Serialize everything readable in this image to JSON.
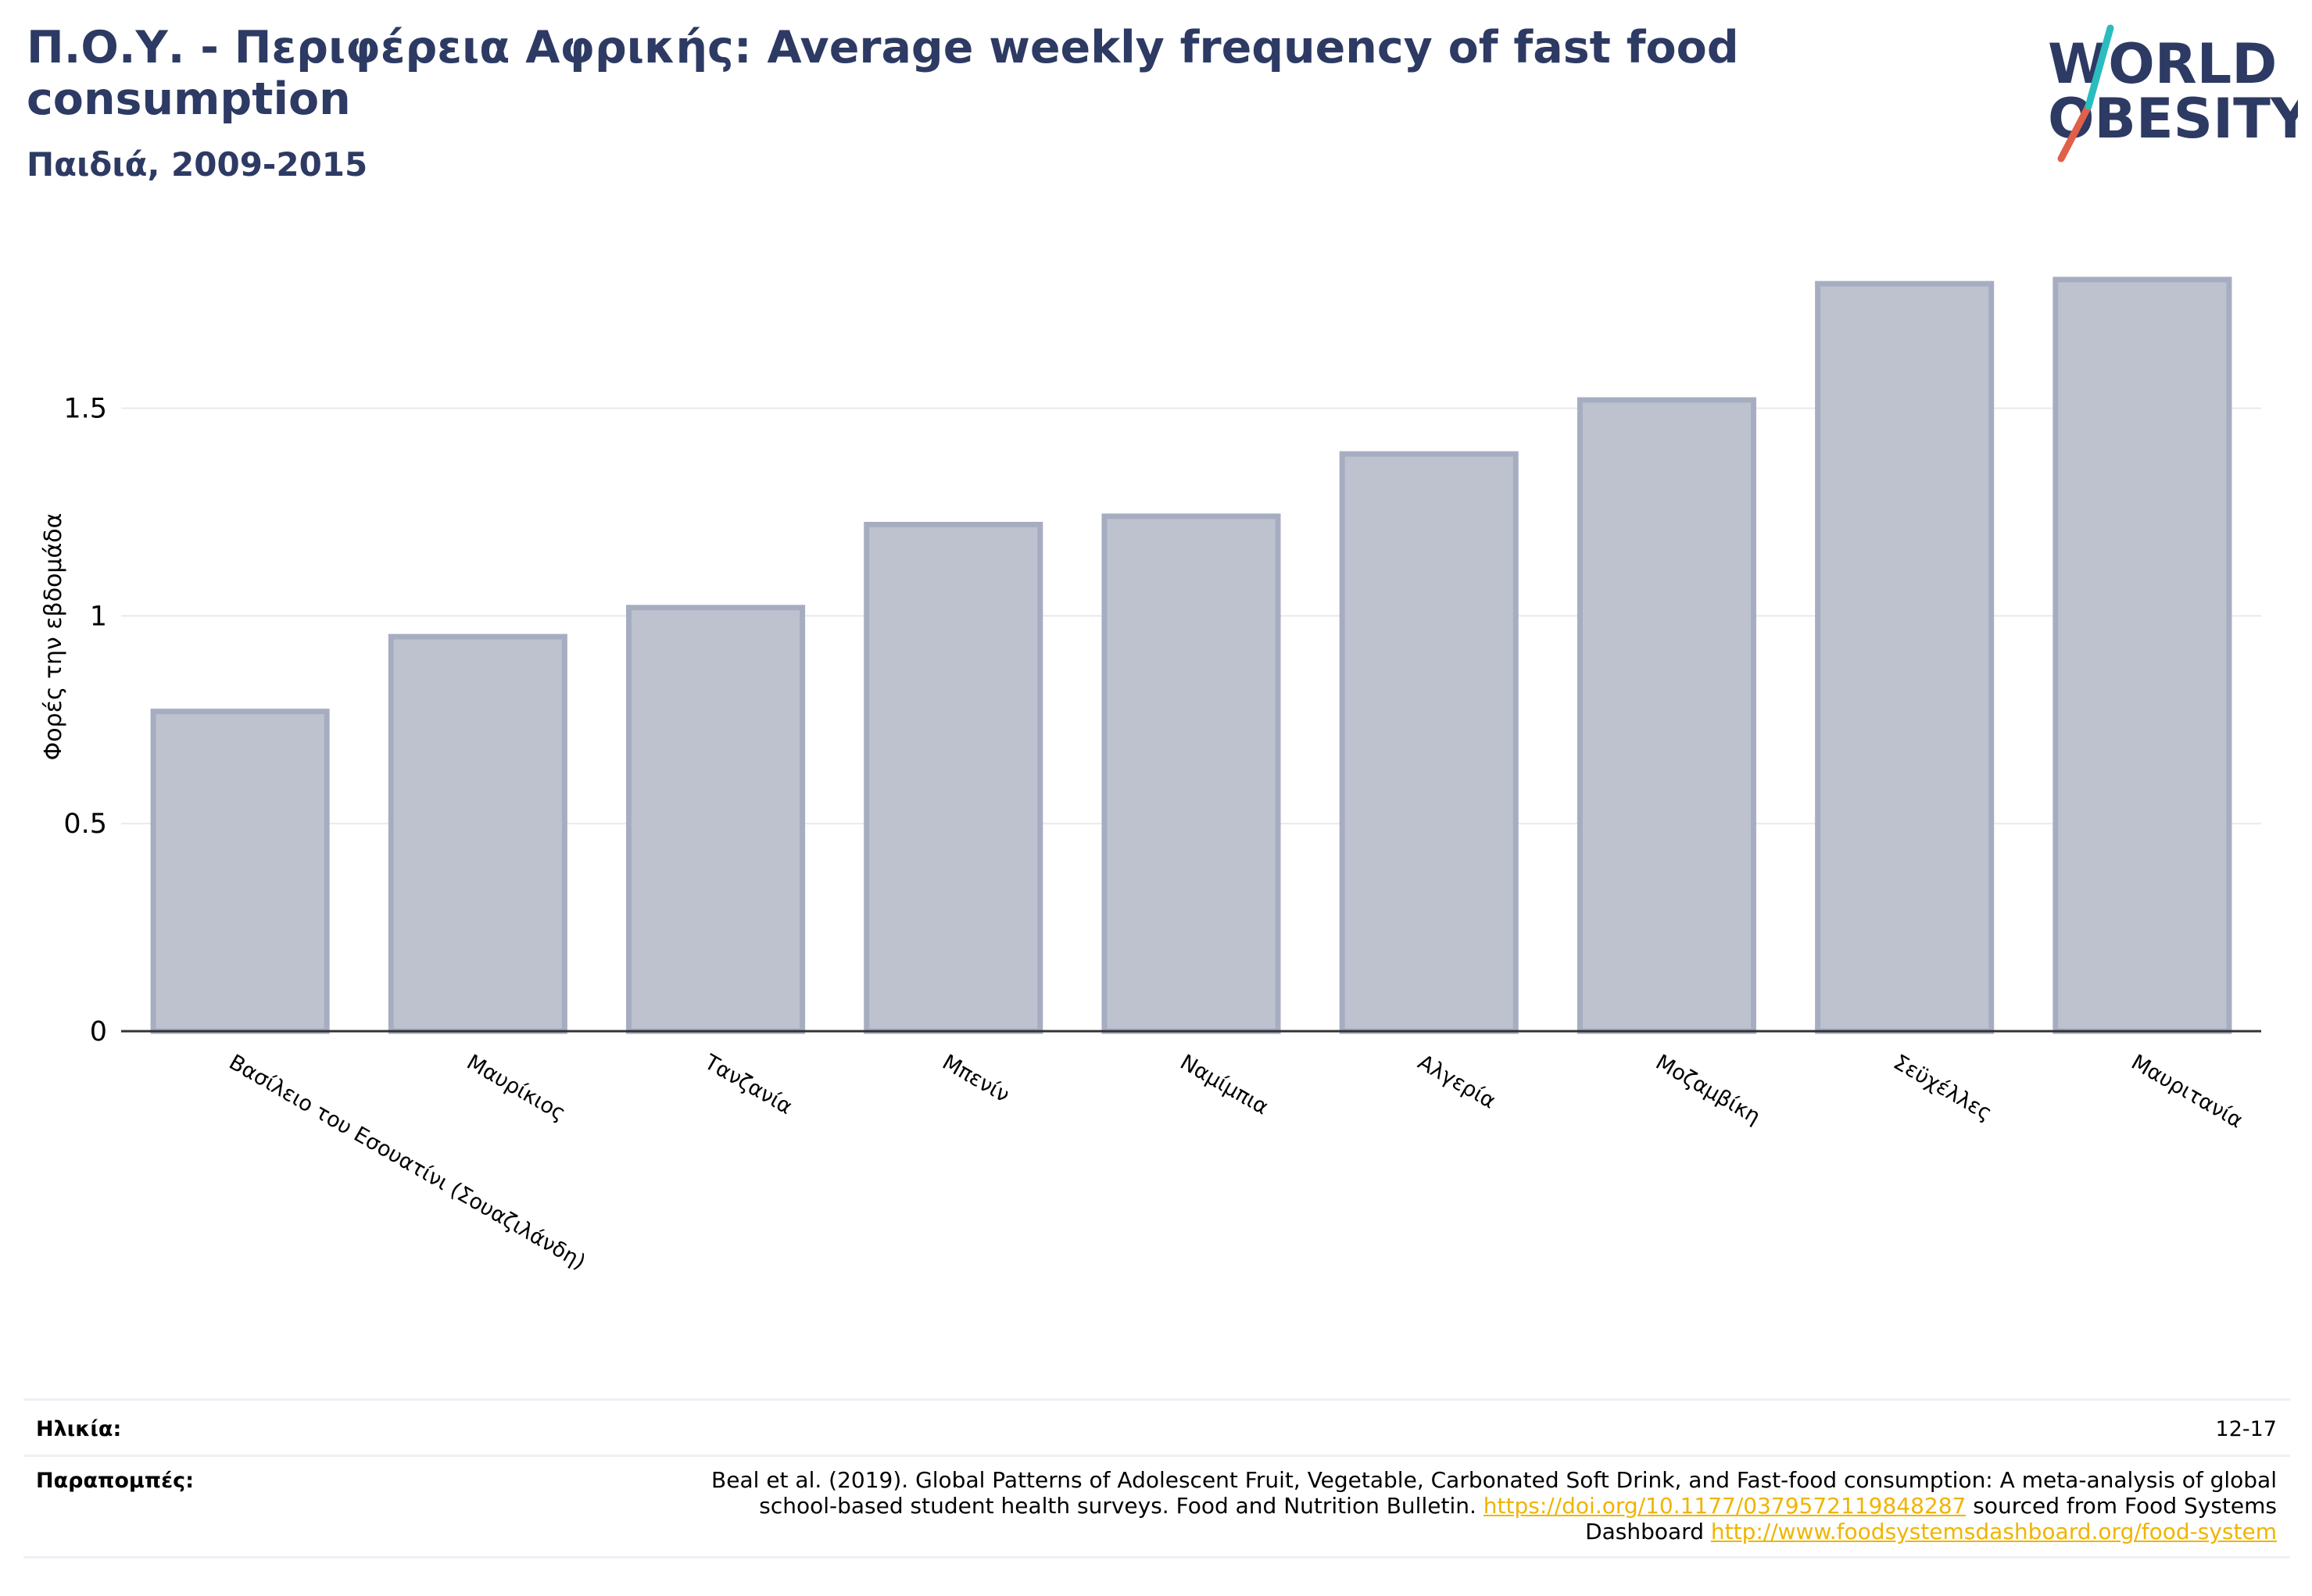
{
  "header": {
    "title": "Π.Ο.Υ. - Περιφέρεια Αφρικής: Average weekly frequency of fast food consumption",
    "subtitle": "Παιδιά, 2009-2015"
  },
  "logo": {
    "line1": "WORLD",
    "line2": "OBESITY",
    "colors": {
      "text": "#2d3a63",
      "slash_red": "#e0604a",
      "slash_teal": "#2bbcc0"
    }
  },
  "chart_data": {
    "type": "bar",
    "ylabel": "Φορές την εβδομάδα",
    "xlabel": "",
    "ylim": [
      0,
      1.9
    ],
    "yticks": [
      0,
      0.5,
      1,
      1.5
    ],
    "ytick_labels": [
      "0",
      "0.5",
      "1",
      "1.5"
    ],
    "grid": true,
    "categories": [
      "Βασίλειο του Εσουατίνι (Σουαζιλάνδη)",
      "Μαυρίκιος",
      "Τανζανία",
      "Μπενίν",
      "Ναμίμπια",
      "Αλγερία",
      "Μοζαμβίκη",
      "Σεϋχέλλες",
      "Μαυριτανία"
    ],
    "values": [
      0.77,
      0.95,
      1.02,
      1.22,
      1.24,
      1.39,
      1.52,
      1.8,
      1.81
    ],
    "colors": {
      "bar_fill": "#bec2cf",
      "bar_stroke": "#a7adc1",
      "axis": "#333333",
      "grid": "#e8e9ee"
    }
  },
  "footer": {
    "age_label": "Ηλικία:",
    "age_value": "12-17",
    "refs_label": "Παραπομπές:",
    "refs_text_1": "Beal et al. (2019). Global Patterns of Adolescent Fruit, Vegetable, Carbonated Soft Drink, and Fast-food consumption: A meta-analysis of global school-based student health surveys. Food and Nutrition Bulletin. ",
    "refs_link_1": "https://doi.org/10.1177/0379572119848287",
    "refs_text_2": " sourced from Food Systems Dashboard ",
    "refs_link_2": "http://www.foodsystemsdashboard.org/food-system"
  }
}
